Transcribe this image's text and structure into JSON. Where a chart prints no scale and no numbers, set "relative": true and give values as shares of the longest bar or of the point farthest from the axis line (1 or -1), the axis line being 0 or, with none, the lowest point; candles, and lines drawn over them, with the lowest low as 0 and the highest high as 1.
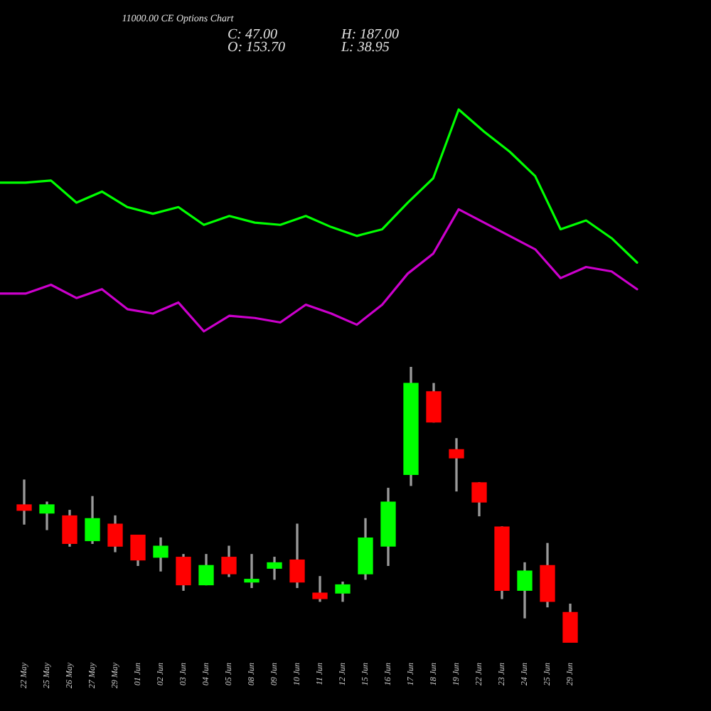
{
  "chart_data": [
    {
      "type": "line",
      "title": "11000.00 CE Options Chart",
      "annotations": [
        "C: 47.00",
        "H: 187.00",
        "O: 153.70",
        "L: 38.95"
      ],
      "relative": true,
      "marker": "none",
      "categories": [
        null,
        null,
        null,
        null,
        null,
        null,
        null,
        null,
        null,
        null,
        null,
        null,
        null,
        null,
        null,
        null,
        null,
        null,
        null,
        null,
        null,
        null,
        null,
        null,
        null,
        null
      ],
      "series": [
        {
          "color": "#00ff00",
          "values": [
            0.67,
            0.67,
            0.68,
            0.58,
            0.63,
            0.56,
            0.53,
            0.56,
            0.48,
            0.52,
            0.49,
            0.48,
            0.52,
            0.47,
            0.43,
            0.46,
            0.58,
            0.69,
            1,
            0.9,
            0.81,
            0.7,
            0.46,
            0.5,
            0.42,
            0.31
          ]
        },
        {
          "color": "#cc00cc",
          "values": [
            0.17,
            0.17,
            0.21,
            0.15,
            0.19,
            0.1,
            0.08,
            0.13,
            0,
            0.07,
            0.06,
            0.04,
            0.12,
            0.08,
            0.03,
            0.12,
            0.26,
            0.35,
            0.55,
            0.49,
            0.43,
            0.37,
            0.24,
            0.29,
            0.27,
            0.19
          ]
        }
      ]
    },
    {
      "type": "candlestick",
      "relative": true,
      "categories": [
        "22 May",
        "25 May",
        "26 May",
        "27 May",
        "29 May",
        "01 Jun",
        "02 Jun",
        "03 Jun",
        "04 Jun",
        "05 Jun",
        "08 Jun",
        "09 Jun",
        "10 Jun",
        "11 Jun",
        "12 Jun",
        "15 Jun",
        "16 Jun",
        "17 Jun",
        "18 Jun",
        "19 Jun",
        "22 Jun",
        "23 Jun",
        "24 Jun",
        "25 Jun",
        "29 Jun"
      ],
      "ohlc": [
        [
          0.5,
          0.59,
          0.43,
          0.48
        ],
        [
          0.47,
          0.51,
          0.41,
          0.5
        ],
        [
          0.46,
          0.48,
          0.35,
          0.36
        ],
        [
          0.37,
          0.53,
          0.36,
          0.45
        ],
        [
          0.43,
          0.46,
          0.33,
          0.35
        ],
        [
          0.39,
          0.39,
          0.28,
          0.3
        ],
        [
          0.31,
          0.38,
          0.26,
          0.35
        ],
        [
          0.31,
          0.32,
          0.19,
          0.21
        ],
        [
          0.21,
          0.32,
          0.21,
          0.28
        ],
        [
          0.31,
          0.35,
          0.24,
          0.25
        ],
        [
          0.22,
          0.32,
          0.2,
          0.23
        ],
        [
          0.27,
          0.31,
          0.23,
          0.29
        ],
        [
          0.3,
          0.43,
          0.2,
          0.22
        ],
        [
          0.18,
          0.24,
          0.15,
          0.16
        ],
        [
          0.18,
          0.22,
          0.15,
          0.21
        ],
        [
          0.25,
          0.45,
          0.23,
          0.38
        ],
        [
          0.35,
          0.56,
          0.28,
          0.51
        ],
        [
          0.61,
          1,
          0.57,
          0.94
        ],
        [
          0.91,
          0.94,
          0.8,
          0.8
        ],
        [
          0.7,
          0.74,
          0.55,
          0.67
        ],
        [
          0.58,
          0.58,
          0.46,
          0.51
        ],
        [
          0.42,
          0.42,
          0.16,
          0.19
        ],
        [
          0.19,
          0.29,
          0.09,
          0.26
        ],
        [
          0.28,
          0.36,
          0.13,
          0.15
        ],
        [
          0.11,
          0.14,
          0,
          0
        ]
      ],
      "colors": [
        "#ff0000",
        "#00ff00",
        "#ff0000",
        "#00ff00",
        "#ff0000",
        "#ff0000",
        "#00ff00",
        "#ff0000",
        "#00ff00",
        "#ff0000",
        "#00ff00",
        "#00ff00",
        "#ff0000",
        "#ff0000",
        "#00ff00",
        "#00ff00",
        "#00ff00",
        "#00ff00",
        "#ff0000",
        "#ff0000",
        "#ff0000",
        "#ff0000",
        "#00ff00",
        "#ff0000",
        "#ff0000"
      ]
    }
  ]
}
